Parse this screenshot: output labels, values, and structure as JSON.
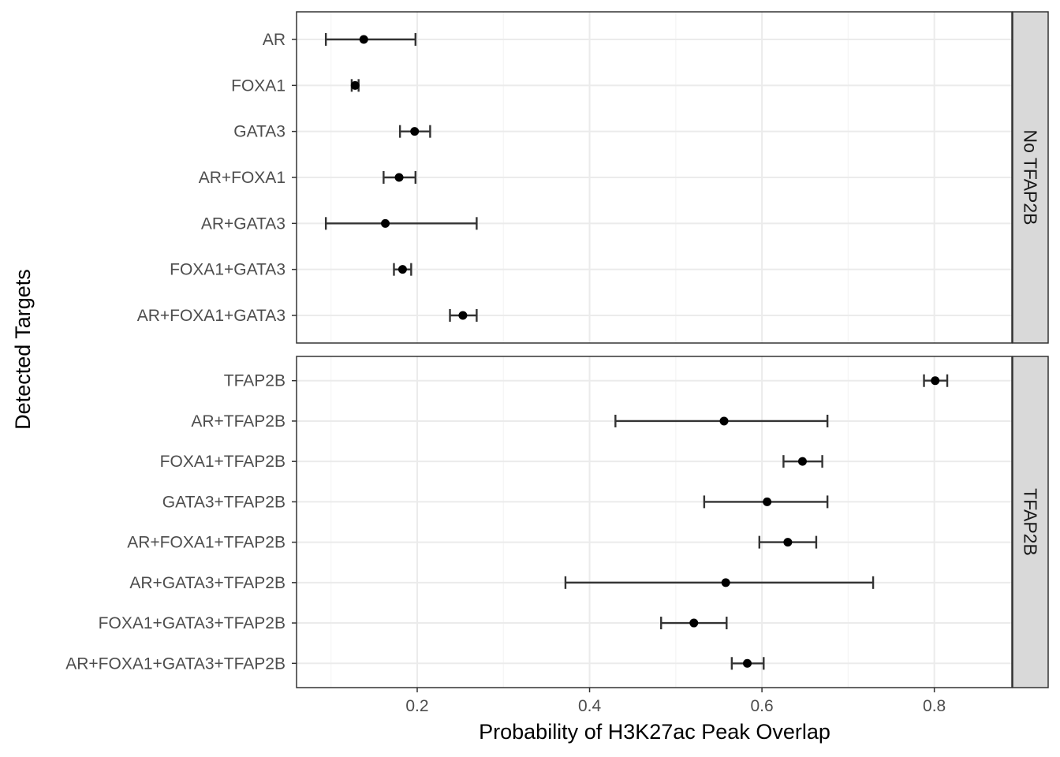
{
  "chart_data": {
    "type": "scatter",
    "subtype": "dot-with-error-bars, faceted by row",
    "xlabel": "Probability of H3K27ac Peak Overlap",
    "ylabel": "Detected Targets",
    "xlim": [
      0.06,
      0.89
    ],
    "xticks": [
      0.2,
      0.4,
      0.6,
      0.8
    ],
    "xtick_labels": [
      "0.2",
      "0.4",
      "0.6",
      "0.8"
    ],
    "grid": true,
    "theme": "bw",
    "facets": [
      {
        "strip_label": "No TFAP2B",
        "categories": [
          "AR",
          "FOXA1",
          "GATA3",
          "AR+FOXA1",
          "AR+GATA3",
          "FOXA1+GATA3",
          "AR+FOXA1+GATA3"
        ],
        "estimate": [
          0.138,
          0.128,
          0.197,
          0.179,
          0.163,
          0.183,
          0.253
        ],
        "lower": [
          0.094,
          0.124,
          0.18,
          0.161,
          0.094,
          0.173,
          0.238
        ],
        "upper": [
          0.198,
          0.132,
          0.215,
          0.198,
          0.269,
          0.193,
          0.269
        ]
      },
      {
        "strip_label": "TFAP2B",
        "categories": [
          "TFAP2B",
          "AR+TFAP2B",
          "FOXA1+TFAP2B",
          "GATA3+TFAP2B",
          "AR+FOXA1+TFAP2B",
          "AR+GATA3+TFAP2B",
          "FOXA1+GATA3+TFAP2B",
          "AR+FOXA1+GATA3+TFAP2B"
        ],
        "estimate": [
          0.801,
          0.556,
          0.647,
          0.606,
          0.63,
          0.558,
          0.521,
          0.583
        ],
        "lower": [
          0.788,
          0.43,
          0.625,
          0.533,
          0.597,
          0.372,
          0.483,
          0.565
        ],
        "upper": [
          0.815,
          0.676,
          0.67,
          0.676,
          0.663,
          0.729,
          0.559,
          0.602
        ]
      }
    ]
  }
}
